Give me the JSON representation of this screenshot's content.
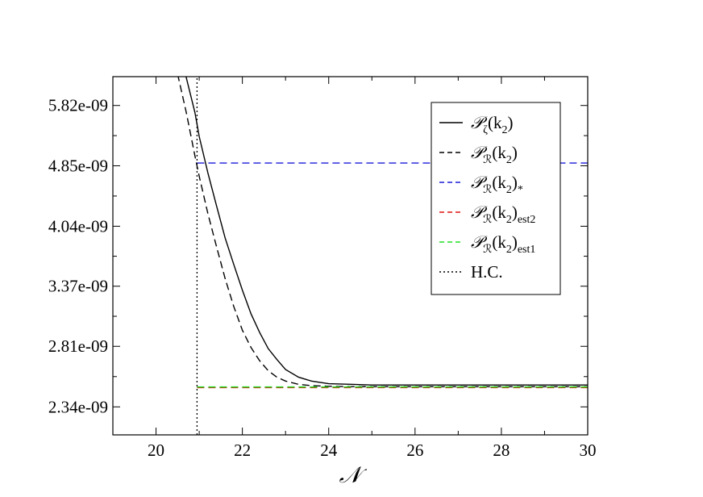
{
  "chart_data": {
    "type": "line",
    "title": "",
    "xlabel": "𝒩",
    "ylabel": "",
    "xlim": [
      19,
      30
    ],
    "ylim": [
      2.15e-09,
      6.35e-09
    ],
    "y_scale": "log",
    "grid": false,
    "legend_position": "top-right",
    "x_ticks": [
      20,
      22,
      24,
      26,
      28,
      30
    ],
    "x_tick_labels": [
      "20",
      "22",
      "24",
      "26",
      "28",
      "30"
    ],
    "y_ticks": [
      2.34e-09,
      2.81e-09,
      3.37e-09,
      4.04e-09,
      4.85e-09,
      5.82e-09
    ],
    "y_tick_labels": [
      "2.34e-09",
      "2.81e-09",
      "3.37e-09",
      "4.04e-09",
      "4.85e-09",
      "5.82e-09"
    ],
    "series": [
      {
        "key": "pzeta",
        "label_main": "𝒫",
        "label_sub": "ζ",
        "label_tail": "(k",
        "label_tail_sub": "2",
        "label_end": ")",
        "label_end_sub": "",
        "color": "#000000",
        "dash": "solid",
        "x": [
          20.68,
          20.9,
          21.0,
          21.2,
          21.4,
          21.6,
          21.8,
          22.0,
          22.2,
          22.4,
          22.6,
          22.8,
          23.0,
          23.3,
          23.6,
          24.0,
          24.5,
          25.0,
          26.0,
          28.0,
          30.0
        ],
        "y": [
          6.4e-09,
          5.7e-09,
          5.3e-09,
          4.75e-09,
          4.3e-09,
          3.9e-09,
          3.6e-09,
          3.33e-09,
          3.1e-09,
          2.93e-09,
          2.79e-09,
          2.7e-09,
          2.62e-09,
          2.56e-09,
          2.53e-09,
          2.51e-09,
          2.505e-09,
          2.5e-09,
          2.5e-09,
          2.5e-09,
          2.5e-09
        ]
      },
      {
        "key": "pr",
        "label_main": "𝒫",
        "label_sub": "ℛ",
        "label_tail": "(k",
        "label_tail_sub": "2",
        "label_end": ")",
        "label_end_sub": "",
        "color": "#000000",
        "dash": "dashed",
        "x": [
          20.5,
          20.7,
          20.9,
          21.0,
          21.2,
          21.4,
          21.6,
          21.8,
          22.0,
          22.2,
          22.4,
          22.6,
          22.8,
          23.0,
          23.3,
          23.6,
          24.0,
          24.5,
          25.0,
          26.0,
          28.0,
          30.0
        ],
        "y": [
          6.4e-09,
          5.7e-09,
          5e-09,
          4.7e-09,
          4.2e-09,
          3.8e-09,
          3.45e-09,
          3.17e-09,
          2.95e-09,
          2.8e-09,
          2.69e-09,
          2.61e-09,
          2.56e-09,
          2.53e-09,
          2.505e-09,
          2.495e-09,
          2.49e-09,
          2.488e-09,
          2.487e-09,
          2.487e-09,
          2.487e-09,
          2.487e-09
        ]
      },
      {
        "key": "pr_star",
        "label_main": "𝒫",
        "label_sub": "ℛ",
        "label_tail": "(k",
        "label_tail_sub": "2",
        "label_end": ")",
        "label_end_sub": "*",
        "color": "#1a1ad9",
        "dash": "dashed",
        "x": [
          20.95,
          30.0
        ],
        "y": [
          4.89e-09,
          4.89e-09
        ]
      },
      {
        "key": "pr_est2",
        "label_main": "𝒫",
        "label_sub": "ℛ",
        "label_tail": "(k",
        "label_tail_sub": "2",
        "label_end": ")",
        "label_end_sub": "est2",
        "color": "#e01010",
        "dash": "dashed",
        "x": [
          20.95,
          30.0
        ],
        "y": [
          2.48e-09,
          2.48e-09
        ]
      },
      {
        "key": "pr_est1",
        "label_main": "𝒫",
        "label_sub": "ℛ",
        "label_tail": "(k",
        "label_tail_sub": "2",
        "label_end": ")",
        "label_end_sub": "est1",
        "color": "#22dd22",
        "dash": "dashed",
        "x": [
          20.95,
          30.0
        ],
        "y": [
          2.485e-09,
          2.485e-09
        ]
      },
      {
        "key": "hc",
        "label_main": "H.C.",
        "label_sub": "",
        "label_tail": "",
        "label_tail_sub": "",
        "label_end": "",
        "label_end_sub": "",
        "color": "#000000",
        "dash": "dotted",
        "x": [
          20.95,
          20.95
        ],
        "y": [
          2.15e-09,
          6.35e-09
        ]
      }
    ]
  }
}
